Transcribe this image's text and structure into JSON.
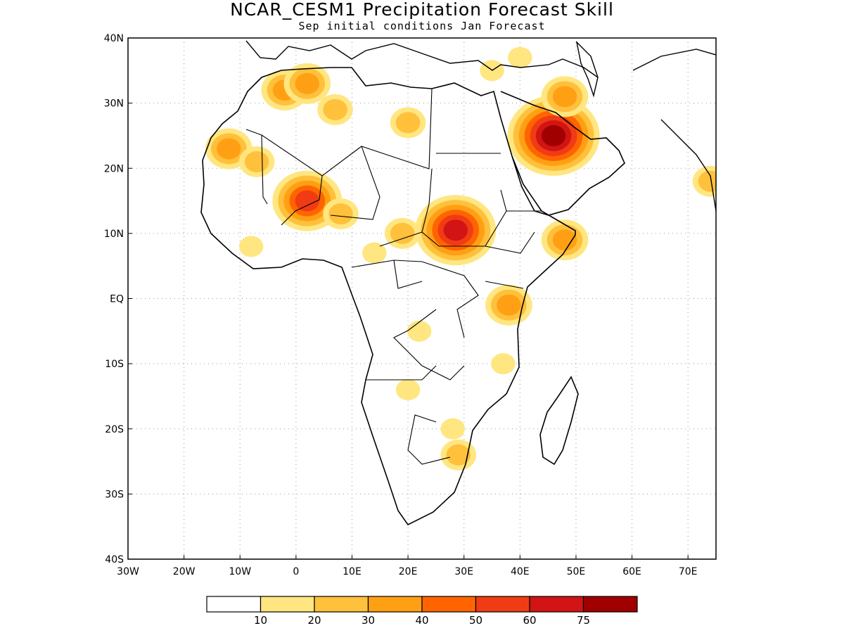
{
  "title": "NCAR_CESM1 Precipitation Forecast Skill",
  "subtitle": "Sep initial conditions  Jan Forecast",
  "map": {
    "lon_range": [
      -30,
      75
    ],
    "lat_range": [
      -40,
      40
    ],
    "x_ticks": [
      "30W",
      "20W",
      "10W",
      "0",
      "10E",
      "20E",
      "30E",
      "40E",
      "50E",
      "60E",
      "70E"
    ],
    "y_ticks": [
      "40N",
      "30N",
      "20N",
      "10N",
      "EQ",
      "10S",
      "20S",
      "30S",
      "40S"
    ],
    "gridlines": "dotted"
  },
  "colorbar": {
    "labels": [
      "10",
      "20",
      "30",
      "40",
      "50",
      "60",
      "75"
    ],
    "colors": [
      "#ffffff",
      "#ffe680",
      "#ffc03c",
      "#ffa014",
      "#ff6400",
      "#f03c14",
      "#d21414",
      "#a00000"
    ]
  },
  "skill_regions": [
    {
      "lon": -2,
      "lat": 32,
      "level": 3
    },
    {
      "lon": 2,
      "lat": 33,
      "level": 3
    },
    {
      "lon": 7,
      "lat": 29,
      "level": 2
    },
    {
      "lon": -12,
      "lat": 23,
      "level": 3
    },
    {
      "lon": -7,
      "lat": 21,
      "level": 2
    },
    {
      "lon": 2,
      "lat": 15,
      "level": 5
    },
    {
      "lon": 8,
      "lat": 13,
      "level": 2
    },
    {
      "lon": 19,
      "lat": 10,
      "level": 2
    },
    {
      "lon": 28.5,
      "lat": 10.5,
      "level": 6
    },
    {
      "lon": 46,
      "lat": 25,
      "level": 7
    },
    {
      "lon": 48,
      "lat": 31,
      "level": 3
    },
    {
      "lon": 48,
      "lat": 9,
      "level": 3
    },
    {
      "lon": 38,
      "lat": -1,
      "level": 3
    },
    {
      "lon": 22,
      "lat": -5,
      "level": 1
    },
    {
      "lon": 28,
      "lat": -20,
      "level": 1
    },
    {
      "lon": 29,
      "lat": -24,
      "level": 2
    },
    {
      "lon": 14,
      "lat": 7,
      "level": 1
    },
    {
      "lon": -8,
      "lat": 8,
      "level": 1
    },
    {
      "lon": 37,
      "lat": -10,
      "level": 1
    },
    {
      "lon": 20,
      "lat": -14,
      "level": 1
    },
    {
      "lon": 74,
      "lat": 18,
      "level": 2
    },
    {
      "lon": 20,
      "lat": 27,
      "level": 2
    },
    {
      "lon": 35,
      "lat": 35,
      "level": 1
    },
    {
      "lon": 40,
      "lat": 37,
      "level": 1
    }
  ]
}
